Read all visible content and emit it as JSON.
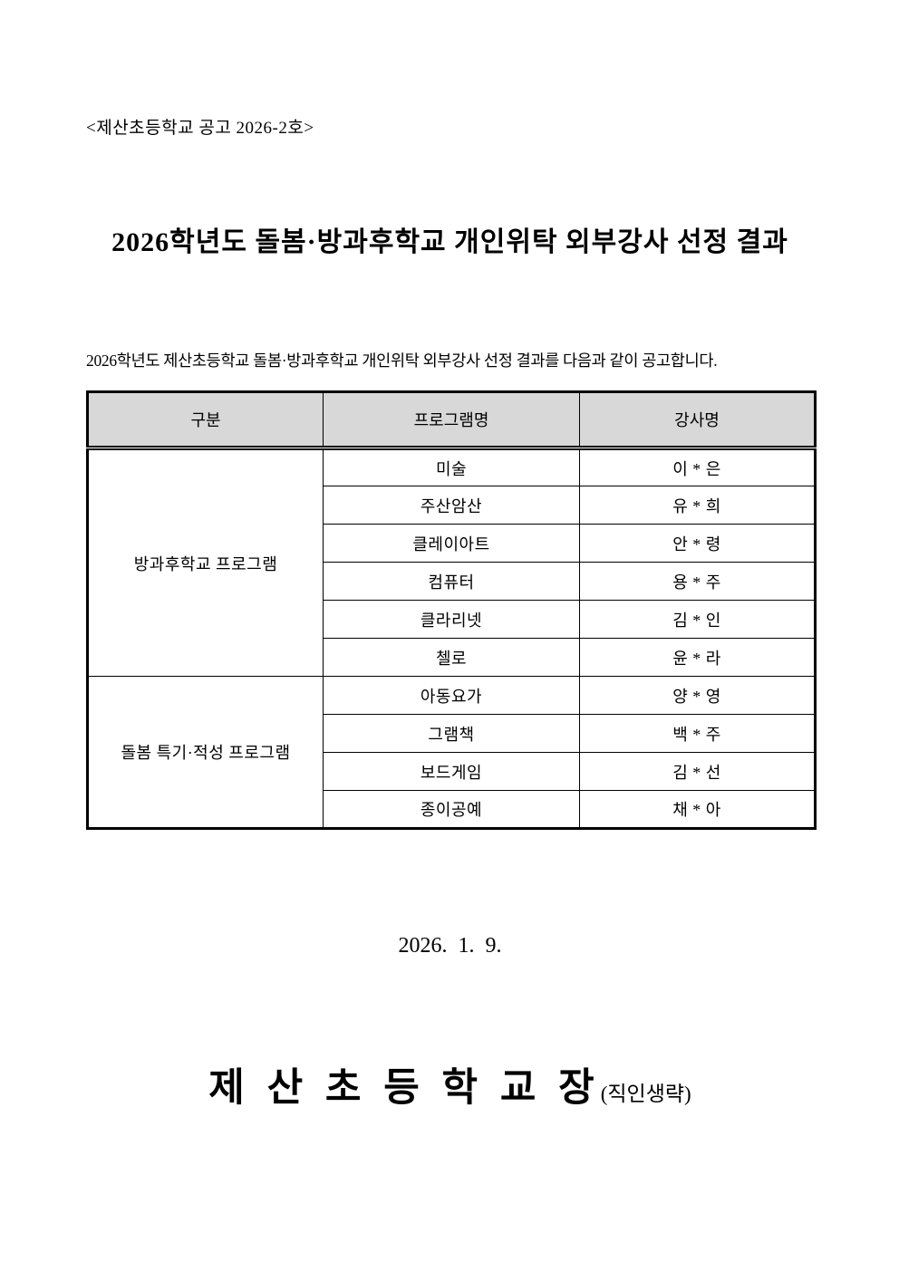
{
  "document": {
    "notice_number": "<제산초등학교 공고 2026-2호>",
    "title": "2026학년도 돌봄·방과후학교 개인위탁 외부강사 선정 결과",
    "intro": "2026학년도 제산초등학교 돌봄·방과후학교 개인위탁 외부강사 선정 결과를 다음과 같이 공고합니다.",
    "date": "2026.  1.  9.",
    "signature": "제 산 초 등 학 교 장",
    "signature_note": "(직인생략)"
  },
  "table": {
    "headers": {
      "category": "구분",
      "program": "프로그램명",
      "instructor": "강사명"
    },
    "groups": [
      {
        "category": "방과후학교 프로그램",
        "rows": [
          {
            "program": "미술",
            "instructor": "이 * 은"
          },
          {
            "program": "주산암산",
            "instructor": "유 * 희"
          },
          {
            "program": "클레이아트",
            "instructor": "안 * 령"
          },
          {
            "program": "컴퓨터",
            "instructor": "용 * 주"
          },
          {
            "program": "클라리넷",
            "instructor": "김 * 인"
          },
          {
            "program": "첼로",
            "instructor": "윤 * 라"
          }
        ]
      },
      {
        "category": "돌봄 특기·적성 프로그램",
        "rows": [
          {
            "program": "아동요가",
            "instructor": "양 * 영"
          },
          {
            "program": "그램책",
            "instructor": "백 * 주"
          },
          {
            "program": "보드게임",
            "instructor": "김 * 선"
          },
          {
            "program": "종이공예",
            "instructor": "채 * 아"
          }
        ]
      }
    ]
  },
  "colors": {
    "page_bg": "#ffffff",
    "header_bg": "#d8d8d8",
    "border": "#000000",
    "text": "#000000"
  }
}
